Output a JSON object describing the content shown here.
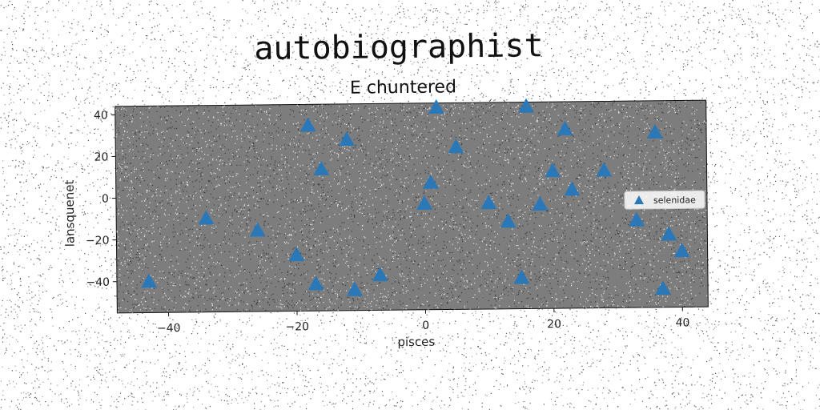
{
  "chart_data": {
    "type": "scatter",
    "title": "autobiographist",
    "subtitle": "E chuntered",
    "xlabel": "pisces",
    "ylabel": "lansquenet",
    "xlim": [
      -48,
      44
    ],
    "ylim": [
      -55,
      44
    ],
    "xticks": [
      -40,
      -20,
      0,
      20,
      40
    ],
    "yticks": [
      -40,
      -20,
      0,
      20,
      40
    ],
    "xtick_labels": [
      "−40",
      "−20",
      "0",
      "20",
      "40"
    ],
    "ytick_labels": [
      "−40",
      "−20",
      "0",
      "20",
      "40"
    ],
    "grid": false,
    "legend": "center-right",
    "colors": {
      "marker": "#2a78b8",
      "plot_bg": "#7d7d7d",
      "frame": "#111111"
    },
    "series": [
      {
        "name": "selenidae",
        "marker": "triangle",
        "points": [
          {
            "x": -43,
            "y": -40
          },
          {
            "x": -34,
            "y": -10
          },
          {
            "x": -26,
            "y": -16
          },
          {
            "x": -20,
            "y": -28
          },
          {
            "x": -18,
            "y": 34
          },
          {
            "x": -17,
            "y": -42
          },
          {
            "x": -16,
            "y": 13
          },
          {
            "x": -12,
            "y": 27
          },
          {
            "x": -11,
            "y": -45
          },
          {
            "x": -7,
            "y": -38
          },
          {
            "x": 0,
            "y": -4
          },
          {
            "x": 1,
            "y": 6
          },
          {
            "x": 2,
            "y": 42
          },
          {
            "x": 5,
            "y": 23
          },
          {
            "x": 10,
            "y": -4
          },
          {
            "x": 13,
            "y": -13
          },
          {
            "x": 15,
            "y": -40
          },
          {
            "x": 16,
            "y": 42
          },
          {
            "x": 18,
            "y": -5
          },
          {
            "x": 20,
            "y": 11
          },
          {
            "x": 22,
            "y": 31
          },
          {
            "x": 23,
            "y": 2
          },
          {
            "x": 28,
            "y": 11
          },
          {
            "x": 33,
            "y": -13
          },
          {
            "x": 36,
            "y": 29
          },
          {
            "x": 37,
            "y": -46
          },
          {
            "x": 38,
            "y": -20
          },
          {
            "x": 40,
            "y": -28
          }
        ]
      }
    ]
  }
}
